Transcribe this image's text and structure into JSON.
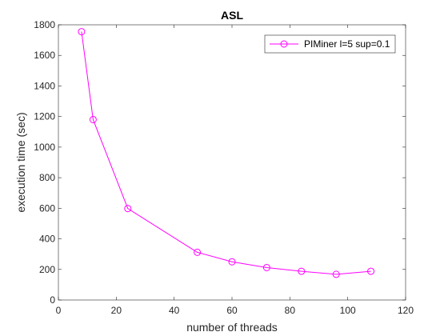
{
  "chart_data": {
    "type": "line",
    "title": "ASL",
    "xlabel": "number of threads",
    "ylabel": "execution time (sec)",
    "xlim": [
      0,
      120
    ],
    "ylim": [
      0,
      1800
    ],
    "xticks": [
      0,
      20,
      40,
      60,
      80,
      100,
      120
    ],
    "yticks": [
      0,
      200,
      400,
      600,
      800,
      1000,
      1200,
      1400,
      1600,
      1800
    ],
    "grid": false,
    "legend_position": "top-right",
    "series": [
      {
        "name": "PIMiner l=5 sup=0.1",
        "color": "#ff00ff",
        "marker": "circle",
        "x": [
          8,
          12,
          24,
          48,
          60,
          72,
          84,
          96,
          108
        ],
        "y": [
          1755,
          1180,
          598,
          312,
          250,
          212,
          188,
          168,
          188
        ]
      }
    ]
  }
}
